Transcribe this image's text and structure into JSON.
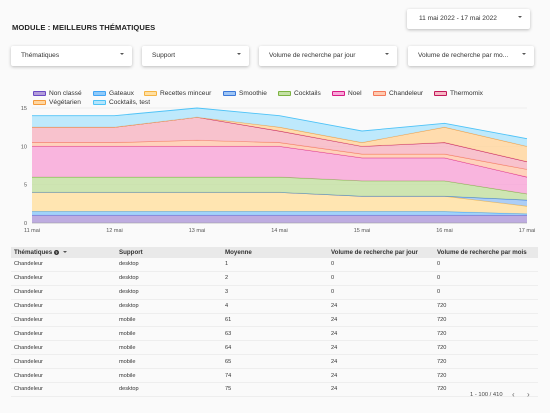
{
  "header": {
    "title": "MODULE : MEILLEURS THÉMATIQUES",
    "date_range": "11 mai 2022 - 17 mai 2022"
  },
  "filters": [
    {
      "label": "Thématiques"
    },
    {
      "label": "Support"
    },
    {
      "label": "Volume de recherche par jour"
    },
    {
      "label": "Volume de recherche par mo..."
    }
  ],
  "legend": [
    {
      "name": "Non classé",
      "color": "#b39ddb",
      "stroke": "#6a4bc4"
    },
    {
      "name": "Gateaux",
      "color": "#90caf9",
      "stroke": "#42a5f5"
    },
    {
      "name": "Recettes minceur",
      "color": "#ffe0a3",
      "stroke": "#f5b443"
    },
    {
      "name": "Smoothie",
      "color": "#9ec5f5",
      "stroke": "#3b78d8"
    },
    {
      "name": "Cocktails",
      "color": "#c5e1a5",
      "stroke": "#7cb342"
    },
    {
      "name": "Noel",
      "color": "#f8a8d8",
      "stroke": "#d81b86"
    },
    {
      "name": "Chandeleur",
      "color": "#ffcab0",
      "stroke": "#f4795a"
    },
    {
      "name": "Thermomix",
      "color": "#f7b7c4",
      "stroke": "#c2185b"
    },
    {
      "name": "Végétarien",
      "color": "#ffd6a0",
      "stroke": "#f59a3b"
    },
    {
      "name": "Cocktails, test",
      "color": "#b3e5fc",
      "stroke": "#4fc3f7"
    }
  ],
  "chart_data": {
    "type": "area",
    "stacked": true,
    "categories": [
      "11 mai",
      "12 mai",
      "13 mai",
      "14 mai",
      "15 mai",
      "16 mai",
      "17 mai"
    ],
    "ylim": [
      0,
      15
    ],
    "yticks": [
      "0",
      "5",
      "10",
      "15"
    ],
    "grid": true,
    "legend_position": "top",
    "series": [
      {
        "name": "Non classé",
        "values": [
          1,
          1,
          1,
          1,
          1,
          1,
          1
        ]
      },
      {
        "name": "Gateaux",
        "values": [
          0.5,
          0.5,
          0.5,
          0.5,
          0.5,
          0.5,
          0.2
        ]
      },
      {
        "name": "Recettes minceur",
        "values": [
          2.5,
          2.5,
          2.5,
          2.5,
          2,
          2,
          1
        ]
      },
      {
        "name": "Smoothie",
        "values": [
          0,
          0,
          0,
          0,
          0,
          0,
          0.8
        ]
      },
      {
        "name": "Cocktails",
        "values": [
          2,
          2,
          2,
          2,
          2,
          2,
          0.8
        ]
      },
      {
        "name": "Noel",
        "values": [
          4,
          4,
          4,
          4,
          3,
          3,
          2.2
        ]
      },
      {
        "name": "Chandeleur",
        "values": [
          0.5,
          0.5,
          0.8,
          0.5,
          0.5,
          0.5,
          1
        ]
      },
      {
        "name": "Thermomix",
        "values": [
          2,
          2,
          3,
          1.5,
          1,
          1.5,
          1
        ]
      },
      {
        "name": "Végétarien",
        "values": [
          0,
          0,
          0,
          0.5,
          0.5,
          2,
          2
        ]
      },
      {
        "name": "Cocktails, test",
        "values": [
          1.5,
          1.5,
          1.2,
          1.5,
          1.5,
          0.5,
          1
        ]
      }
    ]
  },
  "table": {
    "headers": [
      "Thématiques",
      "Support",
      "Moyenne",
      "Volume de recherche par jour",
      "Volume de recherche par mois"
    ],
    "rows": [
      [
        "Chandeleur",
        "desktop",
        "1",
        "0",
        "0"
      ],
      [
        "Chandeleur",
        "desktop",
        "2",
        "0",
        "0"
      ],
      [
        "Chandeleur",
        "desktop",
        "3",
        "0",
        "0"
      ],
      [
        "Chandeleur",
        "desktop",
        "4",
        "24",
        "720"
      ],
      [
        "Chandeleur",
        "mobile",
        "61",
        "24",
        "720"
      ],
      [
        "Chandeleur",
        "mobile",
        "63",
        "24",
        "720"
      ],
      [
        "Chandeleur",
        "mobile",
        "64",
        "24",
        "720"
      ],
      [
        "Chandeleur",
        "mobile",
        "65",
        "24",
        "720"
      ],
      [
        "Chandeleur",
        "mobile",
        "74",
        "24",
        "720"
      ],
      [
        "Chandeleur",
        "desktop",
        "75",
        "24",
        "720"
      ]
    ],
    "pagination": "1 - 100 / 410"
  }
}
